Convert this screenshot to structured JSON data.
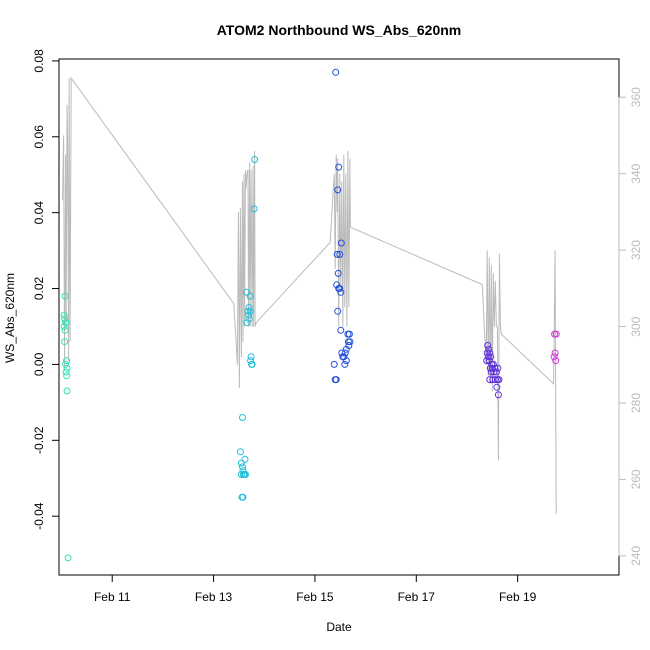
{
  "chart_data": {
    "type": "scatter",
    "title": "ATOM2 Northbound WS_Abs_620nm",
    "xlabel": "Date",
    "ylabel": "WS_Abs_620nm",
    "xlim": [
      9.95,
      21.0
    ],
    "ylim": [
      -0.0555,
      0.0805
    ],
    "y2lim": [
      235,
      370
    ],
    "x_ticks": [
      {
        "value": 11,
        "label": "Feb 11"
      },
      {
        "value": 13,
        "label": "Feb 13"
      },
      {
        "value": 15,
        "label": "Feb 15"
      },
      {
        "value": 17,
        "label": "Feb 17"
      },
      {
        "value": 19,
        "label": "Feb 19"
      }
    ],
    "y_ticks": [
      {
        "value": -0.04,
        "label": "-0.04"
      },
      {
        "value": -0.02,
        "label": "-0.02"
      },
      {
        "value": 0.0,
        "label": "0.00"
      },
      {
        "value": 0.02,
        "label": "0.02"
      },
      {
        "value": 0.04,
        "label": "0.04"
      },
      {
        "value": 0.06,
        "label": "0.06"
      },
      {
        "value": 0.08,
        "label": "0.08"
      }
    ],
    "y2_ticks": [
      {
        "value": 240,
        "label": "240"
      },
      {
        "value": 260,
        "label": "260"
      },
      {
        "value": 280,
        "label": "280"
      },
      {
        "value": 300,
        "label": "300"
      },
      {
        "value": 320,
        "label": "320"
      },
      {
        "value": 340,
        "label": "340"
      },
      {
        "value": 360,
        "label": "360"
      }
    ],
    "colors": {
      "line": "#bbbbbb",
      "axis": "#000000",
      "right_axis": "#bbbbbb"
    },
    "point_groups": [
      {
        "color": "#33e3b3",
        "points": [
          [
            10.07,
            0.018
          ],
          [
            10.05,
            0.013
          ],
          [
            10.06,
            0.012
          ],
          [
            10.08,
            0.011
          ],
          [
            10.05,
            0.01
          ],
          [
            10.09,
            0.011
          ],
          [
            10.07,
            0.009
          ],
          [
            10.06,
            0.006
          ],
          [
            10.1,
            0.001
          ],
          [
            10.08,
            0.0
          ],
          [
            10.11,
            -0.001
          ],
          [
            10.09,
            -0.002
          ],
          [
            10.1,
            -0.003
          ],
          [
            10.11,
            -0.007
          ],
          [
            10.13,
            -0.051
          ]
        ]
      },
      {
        "color": "#1fbfdc",
        "points": [
          [
            13.53,
            -0.023
          ],
          [
            13.55,
            -0.026
          ],
          [
            13.57,
            -0.027
          ],
          [
            13.55,
            -0.029
          ],
          [
            13.58,
            -0.028
          ],
          [
            13.59,
            -0.029
          ],
          [
            13.61,
            -0.029
          ],
          [
            13.63,
            -0.029
          ],
          [
            13.62,
            -0.025
          ],
          [
            13.57,
            -0.014
          ],
          [
            13.56,
            -0.035
          ],
          [
            13.58,
            -0.035
          ],
          [
            13.65,
            0.019
          ],
          [
            13.72,
            0.018
          ],
          [
            13.7,
            0.015
          ],
          [
            13.72,
            0.014
          ],
          [
            13.68,
            0.014
          ],
          [
            13.69,
            0.013
          ],
          [
            13.66,
            0.011
          ],
          [
            13.7,
            0.012
          ],
          [
            13.74,
            0.002
          ],
          [
            13.73,
            0.001
          ],
          [
            13.75,
            0.0
          ],
          [
            13.76,
            0.0
          ],
          [
            13.81,
            0.054
          ],
          [
            13.8,
            0.041
          ]
        ]
      },
      {
        "color": "#2350dc",
        "points": [
          [
            15.41,
            0.077
          ],
          [
            15.47,
            0.052
          ],
          [
            15.45,
            0.046
          ],
          [
            15.52,
            0.032
          ],
          [
            15.44,
            0.029
          ],
          [
            15.49,
            0.029
          ],
          [
            15.46,
            0.024
          ],
          [
            15.43,
            0.021
          ],
          [
            15.47,
            0.02
          ],
          [
            15.49,
            0.02
          ],
          [
            15.51,
            0.019
          ],
          [
            15.45,
            0.014
          ],
          [
            15.51,
            0.009
          ],
          [
            15.65,
            0.008
          ],
          [
            15.68,
            0.008
          ],
          [
            15.66,
            0.006
          ],
          [
            15.69,
            0.006
          ],
          [
            15.62,
            0.004
          ],
          [
            15.67,
            0.005
          ],
          [
            15.53,
            0.003
          ],
          [
            15.55,
            0.002
          ],
          [
            15.57,
            0.002
          ],
          [
            15.6,
            0.003
          ],
          [
            15.62,
            0.001
          ],
          [
            15.59,
            0.0
          ],
          [
            15.38,
            0.0
          ],
          [
            15.4,
            -0.004
          ],
          [
            15.42,
            -0.004
          ]
        ]
      },
      {
        "color": "#5f2ee0",
        "points": [
          [
            18.41,
            0.005
          ],
          [
            18.43,
            0.004
          ],
          [
            18.4,
            0.003
          ],
          [
            18.45,
            0.003
          ],
          [
            18.42,
            0.002
          ],
          [
            18.47,
            0.002
          ],
          [
            18.39,
            0.001
          ],
          [
            18.44,
            0.001
          ],
          [
            18.49,
            0.0
          ],
          [
            18.52,
            0.0
          ],
          [
            18.46,
            -0.001
          ],
          [
            18.5,
            -0.001
          ],
          [
            18.55,
            -0.001
          ],
          [
            18.48,
            -0.002
          ],
          [
            18.53,
            -0.002
          ],
          [
            18.58,
            -0.002
          ],
          [
            18.61,
            -0.001
          ],
          [
            18.45,
            -0.004
          ],
          [
            18.51,
            -0.004
          ],
          [
            18.56,
            -0.004
          ],
          [
            18.6,
            -0.004
          ],
          [
            18.63,
            -0.004
          ],
          [
            18.59,
            -0.006
          ],
          [
            18.62,
            -0.008
          ]
        ]
      },
      {
        "color": "#d33ad9",
        "points": [
          [
            19.73,
            0.008
          ],
          [
            19.76,
            0.008
          ],
          [
            19.74,
            0.003
          ],
          [
            19.72,
            0.002
          ],
          [
            19.75,
            0.001
          ]
        ]
      }
    ],
    "line_y2": [
      [
        10.02,
        333
      ],
      [
        10.04,
        350
      ],
      [
        10.06,
        289
      ],
      [
        10.08,
        345
      ],
      [
        10.09,
        300
      ],
      [
        10.11,
        358
      ],
      [
        10.12,
        350
      ],
      [
        10.14,
        291
      ],
      [
        10.15,
        365
      ],
      [
        10.17,
        296
      ],
      [
        10.19,
        365
      ],
      [
        13.4,
        306
      ],
      [
        13.47,
        290
      ],
      [
        13.49,
        330
      ],
      [
        13.51,
        284
      ],
      [
        13.53,
        331
      ],
      [
        13.55,
        292
      ],
      [
        13.57,
        338
      ],
      [
        13.58,
        296
      ],
      [
        13.6,
        340
      ],
      [
        13.61,
        300
      ],
      [
        13.63,
        341
      ],
      [
        13.64,
        336
      ],
      [
        13.66,
        340
      ],
      [
        13.68,
        341
      ],
      [
        13.69,
        300
      ],
      [
        13.71,
        343
      ],
      [
        13.72,
        300
      ],
      [
        13.74,
        341
      ],
      [
        13.76,
        300
      ],
      [
        13.78,
        342
      ],
      [
        13.79,
        300
      ],
      [
        13.81,
        346
      ],
      [
        13.82,
        300
      ],
      [
        13.84,
        301
      ],
      [
        15.3,
        322
      ],
      [
        15.38,
        340
      ],
      [
        15.4,
        315
      ],
      [
        15.42,
        345
      ],
      [
        15.44,
        330
      ],
      [
        15.45,
        344
      ],
      [
        15.47,
        300
      ],
      [
        15.49,
        340
      ],
      [
        15.51,
        310
      ],
      [
        15.53,
        338
      ],
      [
        15.55,
        300
      ],
      [
        15.57,
        345
      ],
      [
        15.59,
        305
      ],
      [
        15.61,
        340
      ],
      [
        15.63,
        300
      ],
      [
        15.65,
        346
      ],
      [
        15.67,
        305
      ],
      [
        15.69,
        344
      ],
      [
        15.7,
        326
      ],
      [
        18.3,
        311
      ],
      [
        18.38,
        290
      ],
      [
        18.4,
        320
      ],
      [
        18.42,
        287
      ],
      [
        18.44,
        318
      ],
      [
        18.46,
        285
      ],
      [
        18.48,
        316
      ],
      [
        18.5,
        283
      ],
      [
        18.52,
        314
      ],
      [
        18.54,
        300
      ],
      [
        18.56,
        312
      ],
      [
        18.58,
        300
      ],
      [
        18.6,
        300
      ],
      [
        18.62,
        265
      ],
      [
        18.64,
        319
      ],
      [
        18.66,
        300
      ],
      [
        18.68,
        298
      ],
      [
        19.71,
        285
      ],
      [
        19.74,
        320
      ],
      [
        19.76,
        251
      ]
    ]
  }
}
